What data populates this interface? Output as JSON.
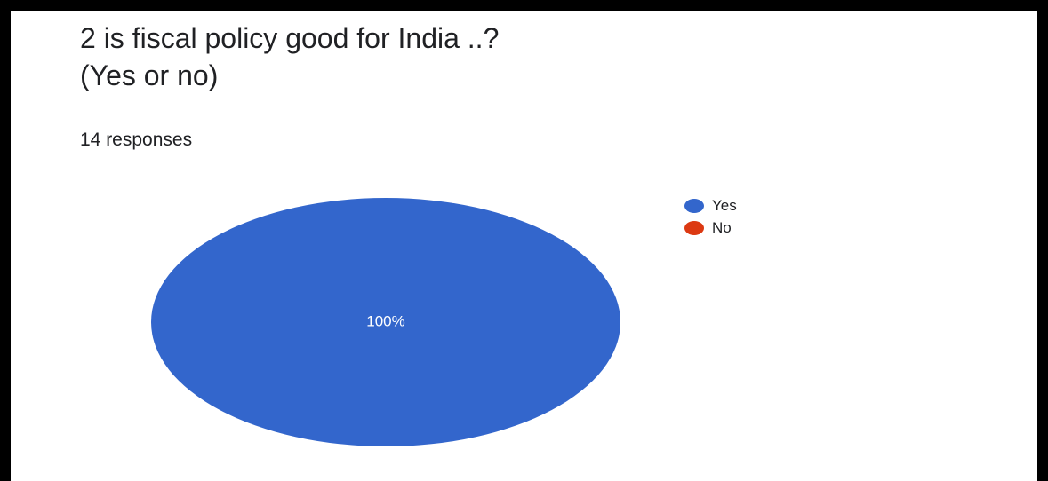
{
  "question": {
    "title": "2 is fiscal policy good for India ..?\n(Yes or no)",
    "responses": "14 responses"
  },
  "chart_data": {
    "type": "pie",
    "title": "2 is fiscal policy good for India ..?\n(Yes or no)",
    "categories": [
      "Yes",
      "No"
    ],
    "values": [
      14,
      0
    ],
    "percent_labels": [
      "100%",
      ""
    ],
    "colors": [
      "#3366cc",
      "#dc3912"
    ],
    "legend_position": "right"
  }
}
